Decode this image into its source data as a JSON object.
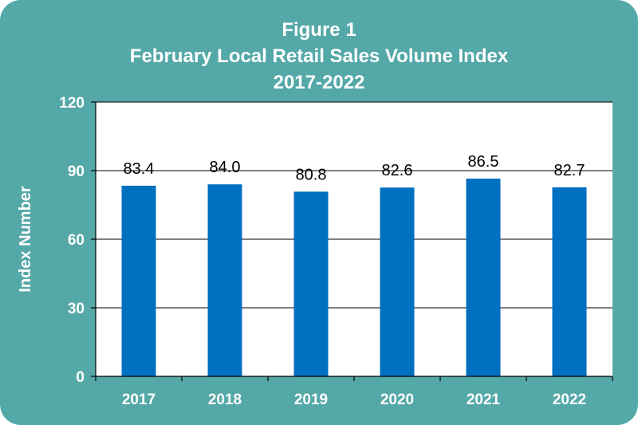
{
  "colors": {
    "frame_background": "#55a8a8",
    "plot_background": "#ffffff",
    "bar": "#0070c0",
    "text_on_frame": "#ffffff",
    "data_label": "#000000"
  },
  "chart_data": {
    "type": "bar",
    "title_lines": [
      "Figure 1",
      "February Local Retail Sales Volume Index",
      "2017-2022"
    ],
    "xlabel": "",
    "ylabel": "Index Number",
    "categories": [
      "2017",
      "2018",
      "2019",
      "2020",
      "2021",
      "2022"
    ],
    "values": [
      83.4,
      84.0,
      80.8,
      82.6,
      86.5,
      82.7
    ],
    "data_labels": [
      "83.4",
      "84.0",
      "80.8",
      "82.6",
      "86.5",
      "82.7"
    ],
    "ylim": [
      0,
      120
    ],
    "yticks": [
      0,
      30,
      60,
      90,
      120
    ],
    "grid": true,
    "legend": "none"
  }
}
